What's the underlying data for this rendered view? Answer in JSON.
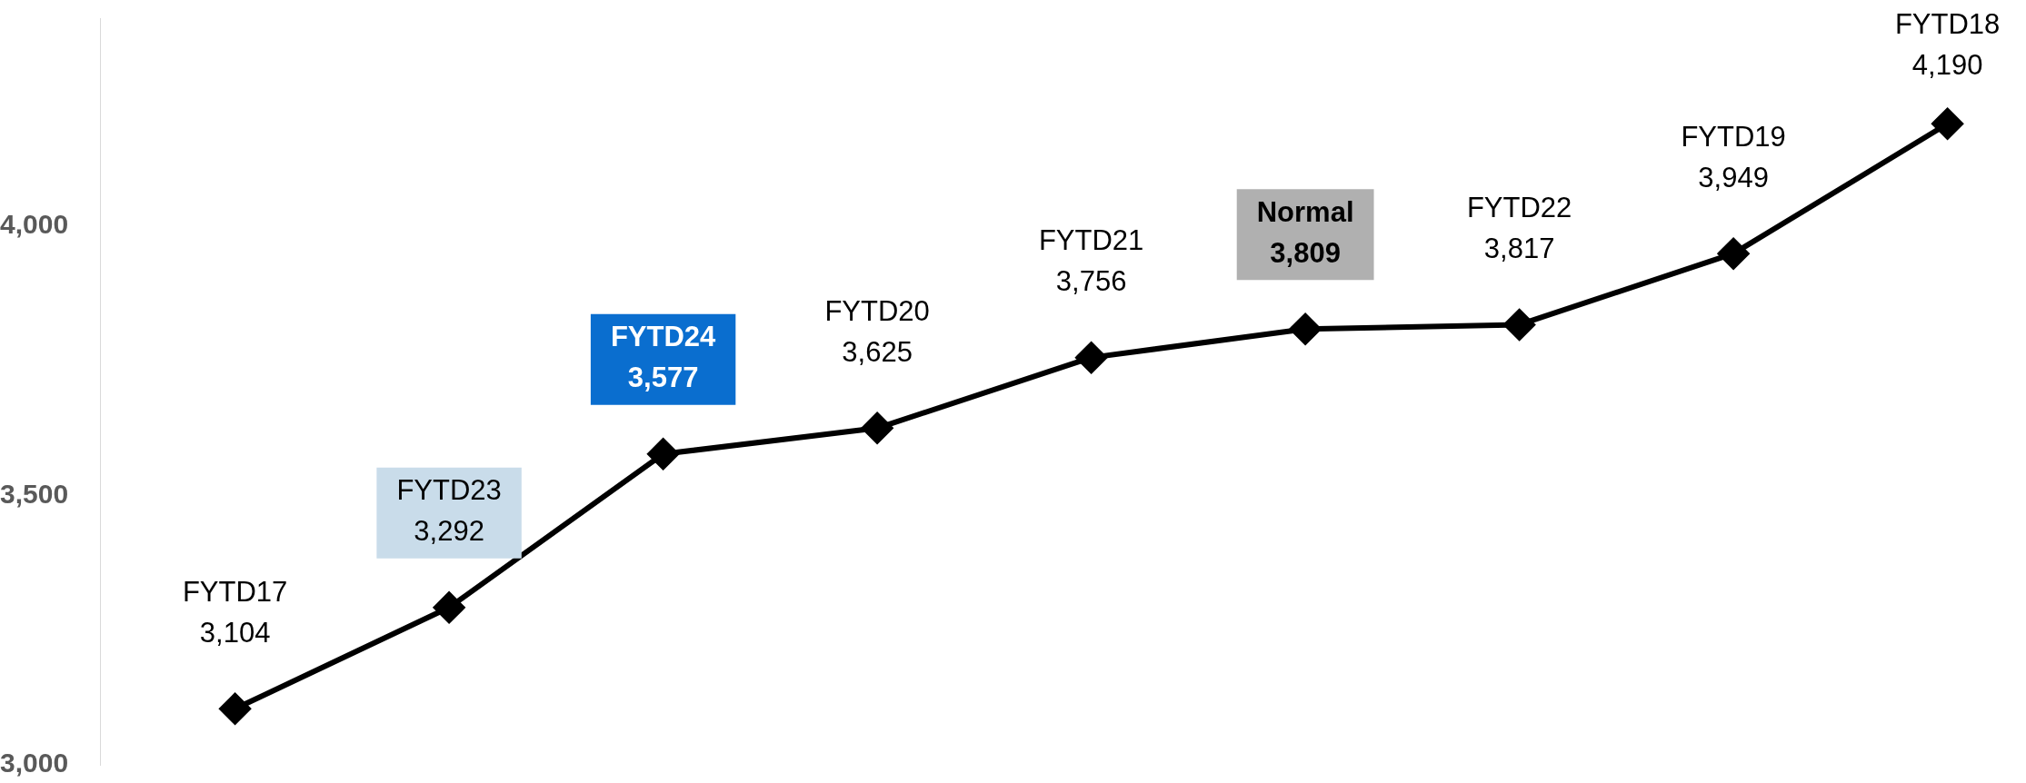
{
  "chart_data": {
    "type": "line",
    "categories": [
      "FYTD17",
      "FYTD23",
      "FYTD24",
      "FYTD20",
      "FYTD21",
      "Normal",
      "FYTD22",
      "FYTD19",
      "FYTD18"
    ],
    "values": [
      3104,
      3292,
      3577,
      3625,
      3756,
      3809,
      3817,
      3949,
      4190
    ],
    "value_labels": [
      "3,104",
      "3,292",
      "3,577",
      "3,625",
      "3,756",
      "3,809",
      "3,817",
      "3,949",
      "4,190"
    ],
    "color": "#000000",
    "marker": "diamond",
    "line_style": "solid",
    "ylim": [
      3000,
      4386
    ],
    "yticks": [
      {
        "value": 3000,
        "label": "3,000"
      },
      {
        "value": 3500,
        "label": "3,500"
      },
      {
        "value": 4000,
        "label": "4,000"
      }
    ],
    "tick_labels": "y",
    "grid": false,
    "legend": false
  }
}
